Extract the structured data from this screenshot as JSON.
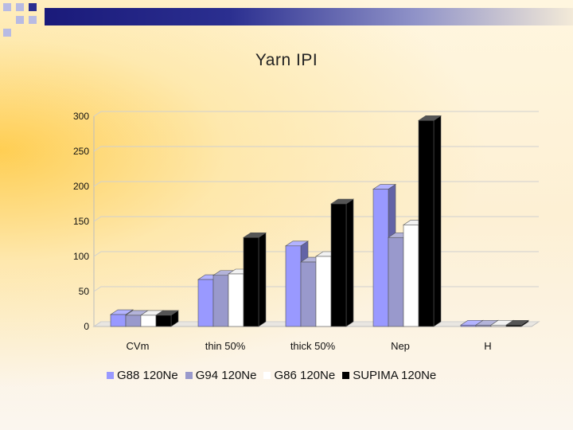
{
  "colors": {
    "header_bar_dark": "#1a1a7a",
    "deco_dark": "#2b2f90",
    "deco_light": "#b8bbe3",
    "grid_line": "#d0d0d0",
    "axis_text": "#111111"
  },
  "chart_data": {
    "type": "bar",
    "style": "3d-clustered",
    "title": "Yarn IPI",
    "xlabel": "",
    "ylabel": "",
    "categories": [
      "CVm",
      "thin 50%",
      "thick 50%",
      "Nep",
      "H"
    ],
    "ylim": [
      0,
      300
    ],
    "yticks": [
      0,
      50,
      100,
      150,
      200,
      250,
      300
    ],
    "grid": true,
    "legend_position": "bottom",
    "series": [
      {
        "name": "G88 120Ne",
        "color": "#9999ff",
        "values": [
          17,
          67,
          115,
          196,
          2
        ]
      },
      {
        "name": "G94 120Ne",
        "color": "#9999cc",
        "values": [
          16,
          73,
          92,
          127,
          2
        ]
      },
      {
        "name": "G86 120Ne",
        "color": "#ffffff",
        "values": [
          16,
          75,
          100,
          145,
          2
        ]
      },
      {
        "name": "SUPIMA 120Ne",
        "color": "#000000",
        "values": [
          16,
          127,
          175,
          294,
          2
        ]
      }
    ]
  }
}
